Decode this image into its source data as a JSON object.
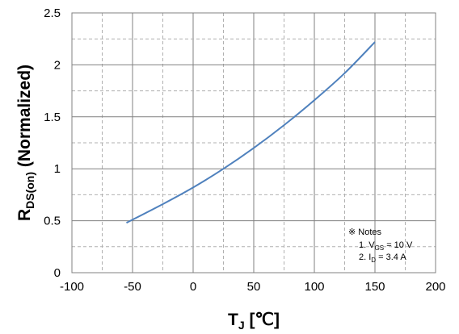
{
  "chart_data": {
    "type": "line",
    "xlabel": {
      "main": "T",
      "sub": "J",
      "unit": " [℃]"
    },
    "ylabel": {
      "main": "R",
      "sub": "DS(on)",
      "rest": " (Normalized)"
    },
    "xlim": [
      -100,
      200
    ],
    "ylim": [
      0,
      2.5
    ],
    "x_major_ticks": [
      -100,
      -50,
      0,
      50,
      100,
      150,
      200
    ],
    "x_tick_labels": [
      "-100",
      "-50",
      "0",
      "50",
      "100",
      "150",
      "200"
    ],
    "y_major_ticks": [
      0,
      0.5,
      1,
      1.5,
      2,
      2.5
    ],
    "y_tick_labels": [
      "0",
      "0.5",
      "1",
      "1.5",
      "2",
      "2.5"
    ],
    "x_minor_step": 25,
    "y_minor_step": 0.25,
    "grid": true,
    "line_color": "#4f81bd",
    "series": [
      {
        "x": [
          -55,
          -25,
          0,
          25,
          50,
          75,
          100,
          125,
          150
        ],
        "values": [
          0.48,
          0.66,
          0.82,
          1.0,
          1.2,
          1.42,
          1.66,
          1.92,
          2.22
        ]
      }
    ],
    "notes": {
      "title": "※ Notes",
      "lines": [
        {
          "prefix": "1. V",
          "sub": "GS",
          "suffix": " = 10 V"
        },
        {
          "prefix": "2. I",
          "sub": "D",
          "suffix": " = 3.4 A"
        }
      ]
    }
  }
}
